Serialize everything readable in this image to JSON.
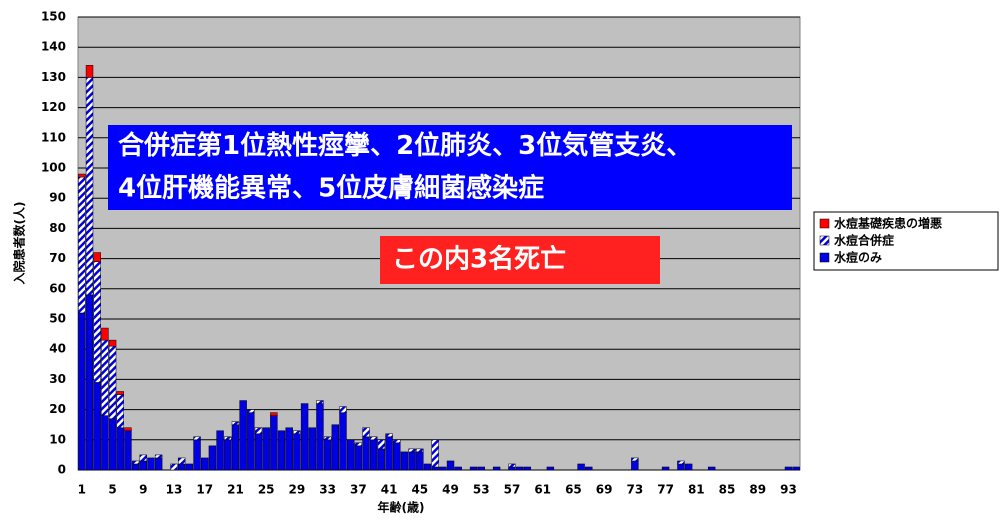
{
  "chart_data": {
    "type": "bar",
    "stacked": true,
    "xlabel": "年齢(歳)",
    "ylabel": "入院患者数(人)",
    "categories": [
      "1",
      null,
      null,
      null,
      "5",
      null,
      null,
      null,
      "9",
      null,
      null,
      null,
      "13",
      null,
      null,
      null,
      "17",
      null,
      null,
      null,
      "21",
      null,
      null,
      null,
      "25",
      null,
      null,
      null,
      "29",
      null,
      null,
      null,
      "33",
      null,
      null,
      null,
      "37",
      null,
      null,
      null,
      "41",
      null,
      null,
      null,
      "45",
      null,
      null,
      null,
      "49",
      null,
      null,
      null,
      "53",
      null,
      null,
      null,
      "57",
      null,
      null,
      null,
      "61",
      null,
      null,
      null,
      "65",
      null,
      null,
      null,
      "69",
      null,
      null,
      null,
      "73",
      null,
      null,
      null,
      "77",
      null,
      null,
      null,
      "81",
      null,
      null,
      null,
      "85",
      null,
      null,
      null,
      "89",
      null,
      null,
      null,
      "93",
      null
    ],
    "series": [
      {
        "name": "水痘のみ",
        "color": "#0000e0",
        "pattern": "solid",
        "values": [
          52,
          58,
          29,
          18,
          17,
          14,
          13,
          2,
          3,
          4,
          4,
          0,
          0,
          2,
          2,
          10,
          4,
          8,
          13,
          10,
          15,
          23,
          19,
          12,
          14,
          18,
          13,
          14,
          12,
          22,
          14,
          22,
          10,
          15,
          19,
          10,
          8,
          11,
          10,
          7,
          11,
          9,
          6,
          6,
          6,
          2,
          1,
          1,
          3,
          1,
          0,
          1,
          1,
          0,
          1,
          0,
          1,
          1,
          1,
          0,
          0,
          1,
          0,
          0,
          0,
          2,
          1,
          0,
          0,
          0,
          0,
          0,
          3,
          0,
          0,
          0,
          1,
          0,
          2,
          2,
          0,
          0,
          1,
          0,
          0,
          0,
          0,
          0,
          0,
          0,
          0,
          0,
          1,
          1
        ]
      },
      {
        "name": "水痘合併症",
        "color": "#0000e0",
        "pattern": "hatch",
        "values": [
          45,
          72,
          40,
          25,
          24,
          11,
          0,
          1,
          2,
          0,
          1,
          0,
          2,
          2,
          0,
          1,
          0,
          0,
          0,
          1,
          1,
          0,
          1,
          2,
          0,
          0,
          0,
          0,
          1,
          0,
          0,
          1,
          1,
          0,
          2,
          0,
          1,
          3,
          1,
          3,
          1,
          1,
          0,
          1,
          1,
          0,
          9,
          0,
          0,
          0,
          0,
          0,
          0,
          0,
          0,
          0,
          1,
          0,
          0,
          0,
          0,
          0,
          0,
          0,
          0,
          0,
          0,
          0,
          0,
          0,
          0,
          0,
          1,
          0,
          0,
          0,
          0,
          0,
          1,
          0,
          0,
          0,
          0,
          0,
          0,
          0,
          0,
          0,
          0,
          0,
          0,
          0,
          0,
          0
        ]
      },
      {
        "name": "水痘基礎疾患の増悪",
        "color": "#ff0000",
        "pattern": "solid",
        "values": [
          1,
          4,
          3,
          4,
          2,
          1,
          1,
          0,
          0,
          0,
          0,
          0,
          0,
          0,
          0,
          0,
          0,
          0,
          0,
          0,
          0,
          0,
          0,
          0,
          0,
          1,
          0,
          0,
          0,
          0,
          0,
          0,
          0,
          0,
          0,
          0,
          0,
          0,
          0,
          0,
          0,
          0,
          0,
          0,
          0,
          0,
          0,
          0,
          0,
          0,
          0,
          0,
          0,
          0,
          0,
          0,
          0,
          0,
          0,
          0,
          0,
          0,
          0,
          0,
          0,
          0,
          0,
          0,
          0,
          0,
          0,
          0,
          0,
          0,
          0,
          0,
          0,
          0,
          0,
          0,
          0,
          0,
          0,
          0,
          0,
          0,
          0,
          0,
          0,
          0,
          0,
          0,
          0,
          0
        ]
      }
    ],
    "ylim": [
      0,
      150
    ],
    "yticks": [
      0,
      10,
      20,
      30,
      40,
      50,
      60,
      70,
      80,
      90,
      100,
      110,
      120,
      130,
      140,
      150
    ],
    "grid": true,
    "legend": "right",
    "annotations": [
      {
        "lines": [
          "合併症第1位熱性痙攣、2位肺炎、3位気管支炎、",
          "4位肝機能異常、5位皮膚細菌感染症"
        ],
        "color": "#0000ff"
      },
      {
        "lines": [
          "この内3名死亡"
        ],
        "color": "#ff2020"
      }
    ]
  }
}
